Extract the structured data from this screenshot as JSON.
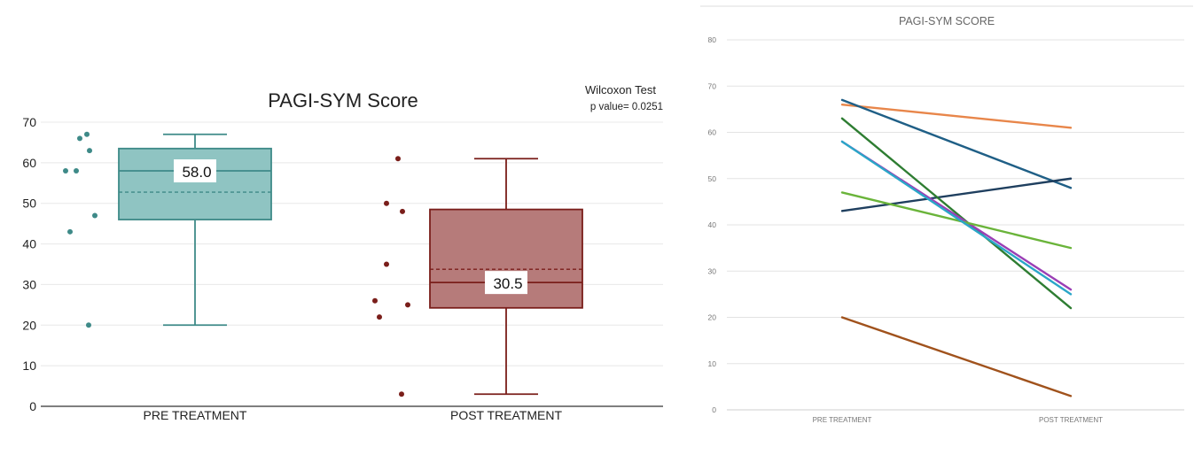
{
  "left_chart": {
    "title": "PAGI-SYM Score",
    "annotation": {
      "line1": "Wilcoxon Test",
      "line2": "p value= 0.0251"
    },
    "y_ticks": [
      0,
      10,
      20,
      30,
      40,
      50,
      60,
      70
    ],
    "colors": {
      "pre_fill": "#8fc4c2",
      "pre_stroke": "#3e8a88",
      "post_fill": "#b67b7a",
      "post_stroke": "#7a1e1a"
    }
  },
  "right_chart": {
    "title": "PAGI-SYM SCORE",
    "y_ticks": [
      0,
      10,
      20,
      30,
      40,
      50,
      60,
      70,
      80
    ],
    "series_colors": [
      "#e8864a",
      "#1f5f86",
      "#1f3f5f",
      "#2e7d32",
      "#9b3fb5",
      "#6ab43a",
      "#2aa6c8",
      "#a0521c"
    ]
  },
  "chart_data": [
    {
      "type": "box",
      "title": "PAGI-SYM Score",
      "categories": [
        "PRE TREATMENT",
        "POST TREATMENT"
      ],
      "ylim": [
        0,
        70
      ],
      "boxes": [
        {
          "category": "PRE TREATMENT",
          "min": 20,
          "q1": 46,
          "median": 58.0,
          "mean": 52.75,
          "q3": 63.5,
          "max": 67,
          "median_label": "58.0",
          "points": [
            58,
            58,
            66,
            67,
            63,
            47,
            43,
            20
          ]
        },
        {
          "category": "POST TREATMENT",
          "min": 3,
          "q1": 24.25,
          "median": 30.5,
          "mean": 33.75,
          "q3": 48.5,
          "max": 61,
          "median_label": "30.5",
          "points": [
            61,
            50,
            48,
            35,
            26,
            25,
            22,
            3
          ]
        }
      ],
      "annotations": [
        "Wilcoxon Test",
        "p value= 0.0251"
      ]
    },
    {
      "type": "line",
      "title": "PAGI-SYM SCORE",
      "categories": [
        "PRE TREATMENT",
        "POST TREATMENT"
      ],
      "ylim": [
        0,
        80
      ],
      "grid": true,
      "series": [
        {
          "values": [
            66,
            61
          ]
        },
        {
          "values": [
            67,
            48
          ]
        },
        {
          "values": [
            43,
            50
          ]
        },
        {
          "values": [
            63,
            22
          ]
        },
        {
          "values": [
            58,
            26
          ]
        },
        {
          "values": [
            47,
            35
          ]
        },
        {
          "values": [
            58,
            25
          ]
        },
        {
          "values": [
            20,
            3
          ]
        }
      ]
    }
  ]
}
